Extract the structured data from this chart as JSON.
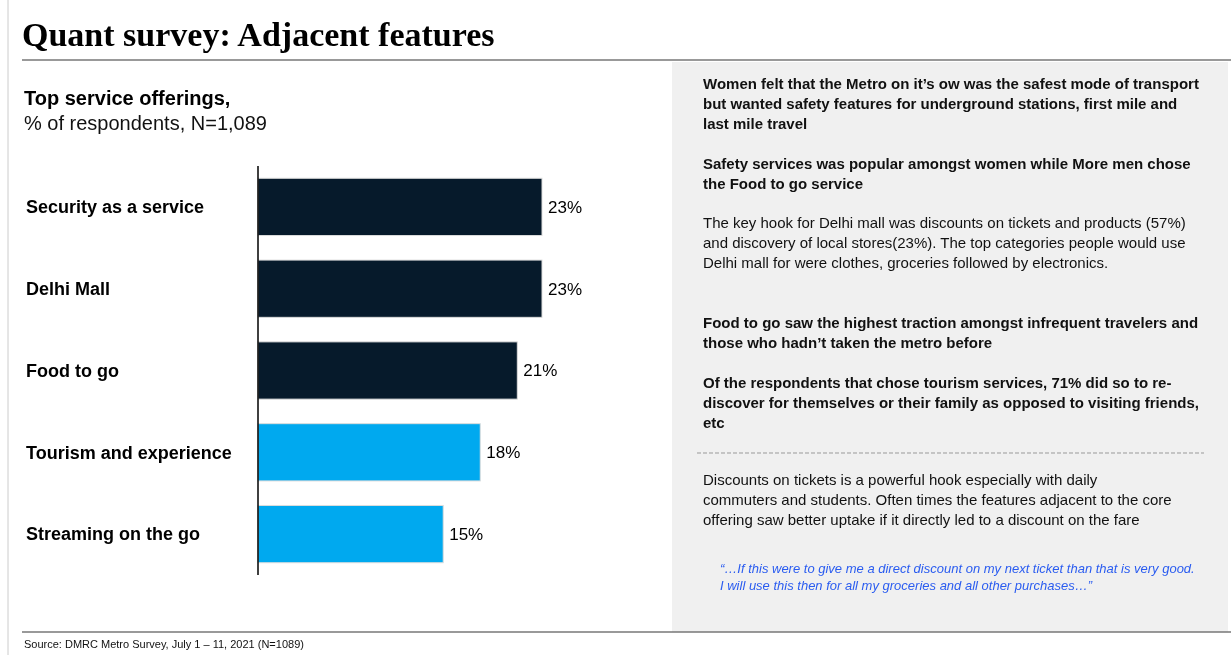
{
  "chart_data": {
    "type": "bar",
    "orientation": "horizontal",
    "title": "Quant survey: Adjacent features",
    "subtitle": "Top service offerings,",
    "categories": [
      "Security as a service",
      "Delhi Mall",
      "Food to go",
      "Tourism and experience",
      "Streaming on the go"
    ],
    "values": [
      23,
      23,
      21,
      18,
      15
    ],
    "colors": [
      "#061a2b",
      "#061a2b",
      "#061a2b",
      "#00a9ef",
      "#00a9ef"
    ],
    "value_labels": [
      "23%",
      "23%",
      "21%",
      "18%",
      "15%"
    ],
    "annotations": [
      "% of respondents, N=1,089",
      "Women felt that the Metro on it’s ow was the safest mode of transport but wanted safety features for underground stations, first mile and last mile travel",
      "Safety services was popular amongst women while More men chose the Food to go service",
      "The key hook for Delhi mall was discounts on tickets and products (57%) and discovery of local stores(23%). The top categories people would use Delhi mall for were clothes, groceries followed by electronics.",
      "Food to go saw the highest traction amongst infrequent travelers and those who hadn’t taken the metro before",
      "Of the respondents that chose tourism services, 71% did so to re-discover for themselves or their family as opposed to visiting friends, etc",
      "Discounts on tickets is a powerful hook especially with daily commuters and students. Often times the features adjacent to the core offering saw better uptake if it directly led to a discount on the fare",
      "“…If this were to give me a direct discount on my next ticket than that is very good. I will use this then for all my groceries and all other purchases…”",
      "Source: DMRC Metro Survey, July 1 – 11, 2021 (N=1089)"
    ]
  }
}
